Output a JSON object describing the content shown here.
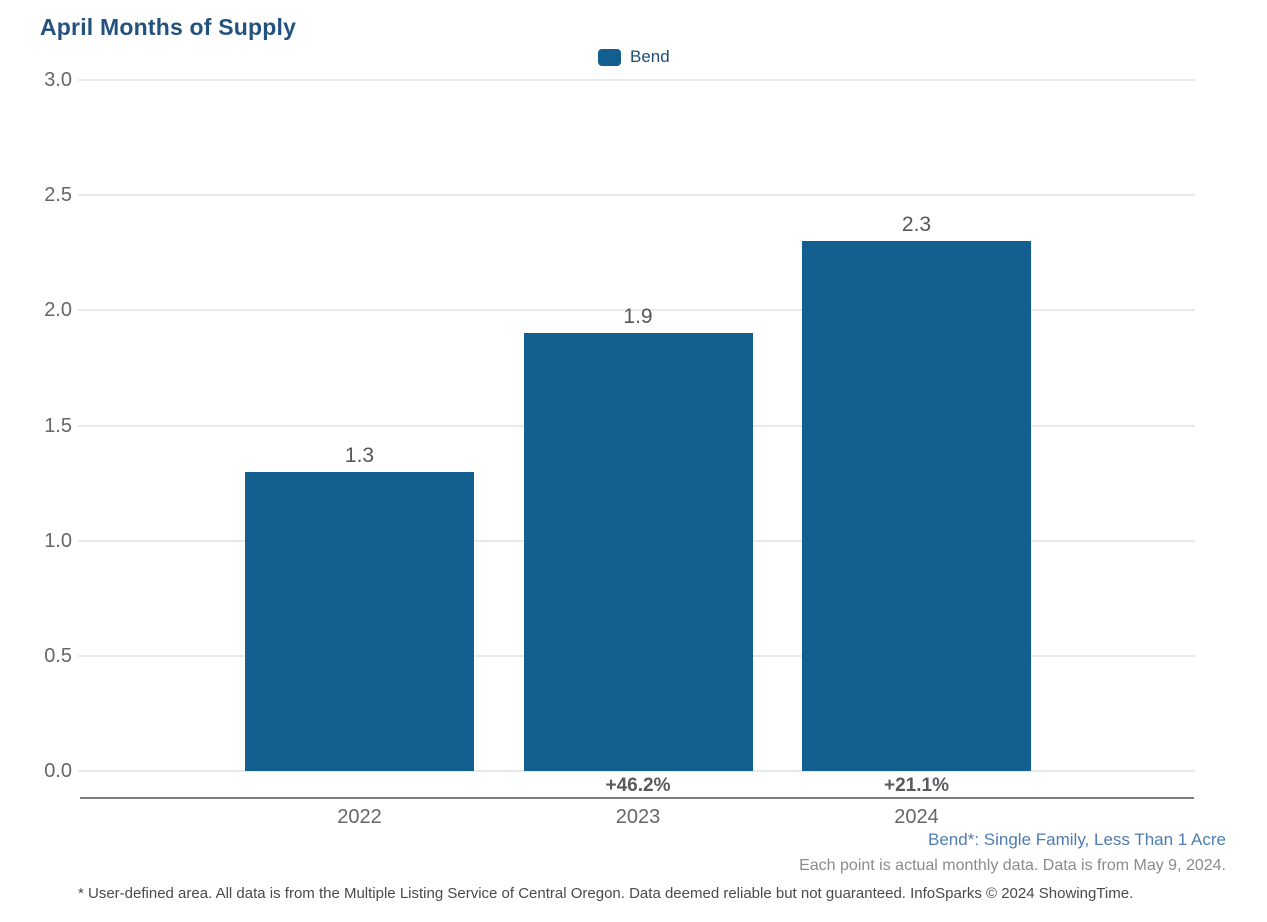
{
  "header": {
    "title": "April Months of Supply"
  },
  "legend": {
    "label": "Bend",
    "swatch_color": "#125f90"
  },
  "chart_data": {
    "type": "bar",
    "title": "April Months of Supply",
    "categories": [
      "2022",
      "2023",
      "2024"
    ],
    "series": [
      {
        "name": "Bend",
        "values": [
          1.3,
          1.9,
          2.3
        ]
      }
    ],
    "value_labels": [
      "1.3",
      "1.9",
      "2.3"
    ],
    "change_labels": [
      "",
      "+46.2%",
      "+21.1%"
    ],
    "ylim": [
      0,
      3
    ],
    "ytick_step": 0.5,
    "ytick_labels": [
      "3.0",
      "2.5",
      "2.0",
      "1.5",
      "1.0",
      "0.5",
      "0.0"
    ],
    "grid": true,
    "legend_position": "top-center",
    "bar_color": "#125f90"
  },
  "colors": {
    "title": "#24527e",
    "bar": "#125f90",
    "legend_text": "#1d4e77",
    "series_note": "#4f7cb0",
    "gridline": "#e9e9e9",
    "axis_line": "#7c7c7c",
    "tick_text": "#666666",
    "value_text": "#565759"
  },
  "footnotes": {
    "series_definition": "Bend*: Single Family, Less Than 1 Acre",
    "data_note": "Each point is actual monthly data. Data is from May 9, 2024.",
    "disclaimer": "* User-defined area. All data is from the Multiple Listing Service of Central Oregon. Data deemed reliable but not guaranteed. InfoSparks © 2024 ShowingTime."
  }
}
